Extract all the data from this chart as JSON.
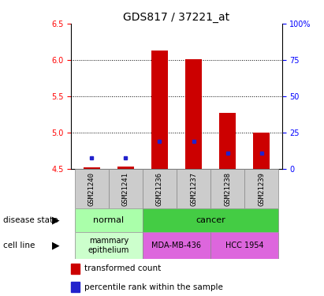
{
  "title": "GDS817 / 37221_at",
  "samples": [
    "GSM21240",
    "GSM21241",
    "GSM21236",
    "GSM21237",
    "GSM21238",
    "GSM21239"
  ],
  "red_values": [
    4.52,
    4.53,
    6.13,
    6.01,
    5.27,
    5.0
  ],
  "blue_marker_y": [
    4.65,
    4.65,
    4.88,
    4.88,
    4.72,
    4.72
  ],
  "ylim_left": [
    4.5,
    6.5
  ],
  "ylim_right": [
    0,
    100
  ],
  "yticks_left": [
    4.5,
    5.0,
    5.5,
    6.0,
    6.5
  ],
  "yticks_right": [
    0,
    25,
    50,
    75,
    100
  ],
  "bar_color": "#cc0000",
  "blue_color": "#2222cc",
  "bar_width": 0.5,
  "normal_color": "#aaffaa",
  "cancer_color": "#44cc44",
  "mda_color": "#dd66dd",
  "hcc_color": "#dd66dd",
  "mammary_color": "#ccffcc",
  "gray_color": "#cccccc",
  "title_fontsize": 10,
  "tick_fontsize": 7,
  "label_fontsize": 8,
  "legend_fontsize": 7.5
}
